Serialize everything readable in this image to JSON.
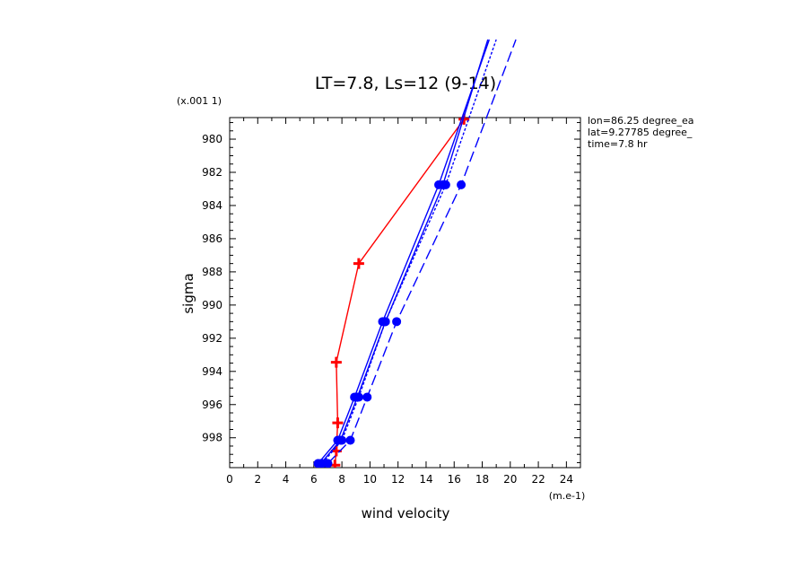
{
  "chart_data": {
    "type": "line",
    "title": "LT=7.8, Ls=12 (9-14)",
    "xlabel": "wind velocity",
    "ylabel": "sigma",
    "x_scale_label": "(m.e-1)",
    "y_scale_label": "(x.001 1)",
    "xlim": [
      0,
      25
    ],
    "ylim": [
      999.8,
      978.7
    ],
    "x_ticks": [
      "0",
      "2",
      "4",
      "6",
      "8",
      "10",
      "12",
      "14",
      "16",
      "18",
      "20",
      "22",
      "24"
    ],
    "y_ticks": [
      "980",
      "982",
      "984",
      "986",
      "988",
      "990",
      "992",
      "994",
      "996",
      "998"
    ],
    "info_lines": [
      "lon=86.25 degree_ea",
      "lat=9.27785 degree_",
      "time=7.8 hr"
    ],
    "series": [
      {
        "color": "#ff0000",
        "dash": "",
        "marker": "plus",
        "points": [
          [
            7.5,
            999.65
          ],
          [
            7.6,
            998.8
          ],
          [
            7.7,
            997.1
          ],
          [
            7.6,
            993.45
          ],
          [
            9.2,
            987.5
          ],
          [
            16.7,
            978.8
          ]
        ]
      },
      {
        "color": "#0000ff",
        "dash": "",
        "marker": "dot",
        "points": [
          [
            6.3,
            999.55
          ],
          [
            7.7,
            998.15
          ],
          [
            8.9,
            995.55
          ],
          [
            10.9,
            991.0
          ],
          [
            14.9,
            982.75
          ],
          [
            18.5,
            974.0
          ]
        ]
      },
      {
        "color": "#0000ff",
        "dash": "",
        "marker": "dot",
        "points": [
          [
            6.5,
            999.55
          ],
          [
            7.9,
            998.15
          ],
          [
            9.1,
            995.55
          ],
          [
            11.1,
            991.0
          ],
          [
            15.2,
            982.75
          ],
          [
            18.4,
            974.0
          ]
        ]
      },
      {
        "color": "#0000ff",
        "dash": "3,2",
        "marker": "dot",
        "points": [
          [
            6.6,
            999.55
          ],
          [
            8.0,
            998.15
          ],
          [
            9.2,
            995.55
          ],
          [
            11.1,
            991.0
          ],
          [
            15.4,
            982.75
          ],
          [
            19.0,
            974.0
          ]
        ]
      },
      {
        "color": "#0000ff",
        "dash": "12,5",
        "marker": "dot",
        "points": [
          [
            7.0,
            999.55
          ],
          [
            8.6,
            998.15
          ],
          [
            9.8,
            995.55
          ],
          [
            11.9,
            991.0
          ],
          [
            16.5,
            982.75
          ],
          [
            20.4,
            974.0
          ]
        ]
      }
    ]
  }
}
